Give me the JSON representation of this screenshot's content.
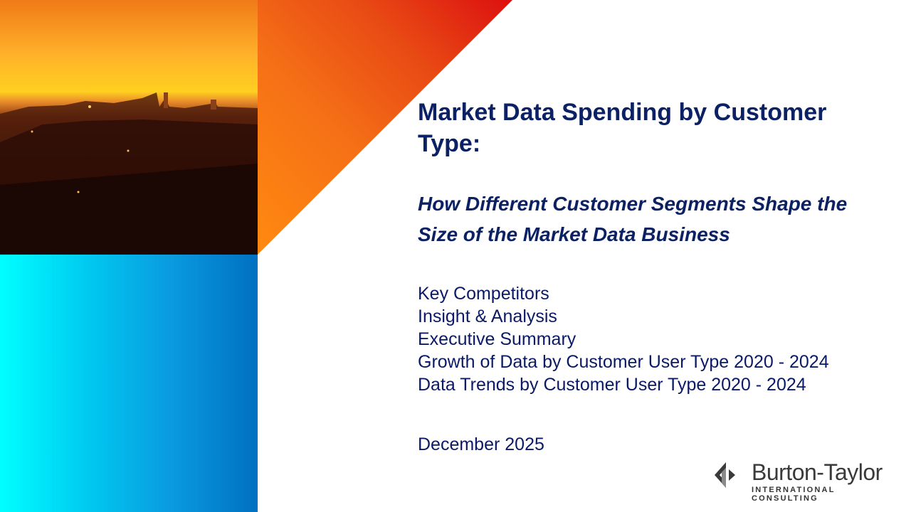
{
  "slide": {
    "title": "Market Data Spending by Customer Type:",
    "subtitle": "How Different Customer Segments Shape the Size of the Market Data Business",
    "contents": [
      "Key Competitors",
      "Insight & Analysis",
      "Executive Summary",
      "Growth of Data by Customer User Type 2020 - 2024",
      "Data Trends by Customer User Type 2020 - 2024"
    ],
    "date": "December 2025"
  },
  "logo": {
    "name": "Burton-Taylor",
    "tagline": "INTERNATIONAL CONSULTING"
  },
  "colors": {
    "title": "#0b2163",
    "orange": "#f57016",
    "red": "#dc1010",
    "cyan": "#00ffff",
    "blue": "#0070c0"
  }
}
